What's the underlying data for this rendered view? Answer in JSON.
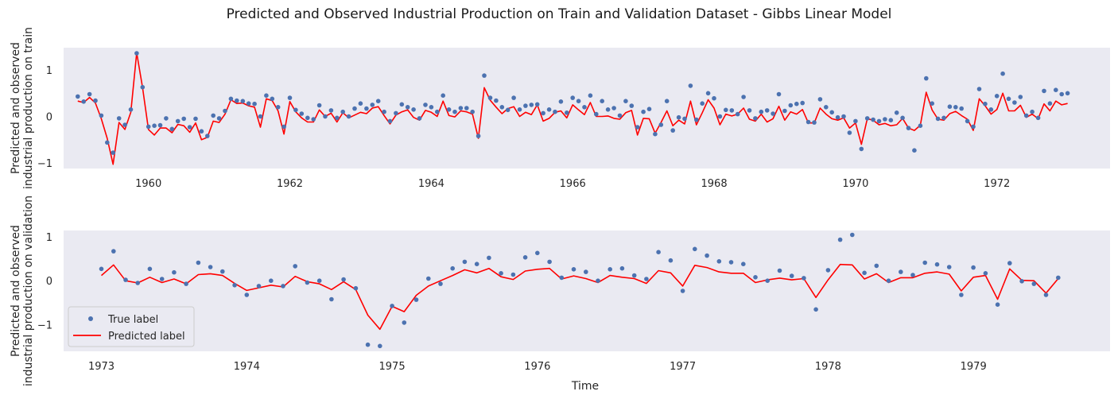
{
  "figure": {
    "title": "Predicted and Observed Industrial Production on Train and Validation Dataset - Gibbs Linear Model"
  },
  "colors": {
    "observed": "#4c72b0",
    "predicted": "#ff0000",
    "background": "#eaeaf2"
  },
  "chart_data": [
    {
      "type": "line",
      "name": "train",
      "ylabel_lines": [
        "Predicted and observed",
        "industrial production on train"
      ],
      "xlabel": "",
      "x_ticks": [
        1960,
        1962,
        1964,
        1966,
        1968,
        1970,
        1972
      ],
      "y_ticks": [
        1,
        0,
        -1
      ],
      "xlim": [
        1958.8,
        1973.6
      ],
      "ylim": [
        -1.12,
        1.48
      ],
      "x_start": 1959.0,
      "x_step": 0.08333,
      "observed": [
        0.43,
        0.32,
        0.48,
        0.34,
        0.02,
        -0.56,
        -0.78,
        -0.04,
        -0.18,
        0.15,
        1.36,
        0.63,
        -0.22,
        -0.2,
        -0.19,
        -0.04,
        -0.27,
        -0.1,
        -0.05,
        -0.23,
        -0.05,
        -0.32,
        -0.42,
        0.02,
        -0.04,
        0.12,
        0.38,
        0.34,
        0.33,
        0.28,
        0.27,
        0.0,
        0.45,
        0.38,
        0.2,
        -0.22,
        0.4,
        0.14,
        0.06,
        -0.03,
        -0.06,
        0.24,
        0.0,
        0.13,
        -0.03,
        0.1,
        0.0,
        0.17,
        0.28,
        0.17,
        0.25,
        0.33,
        0.1,
        -0.1,
        0.07,
        0.26,
        0.2,
        0.15,
        -0.04,
        0.25,
        0.2,
        0.1,
        0.45,
        0.15,
        0.1,
        0.18,
        0.18,
        0.1,
        -0.42,
        0.88,
        0.4,
        0.34,
        0.2,
        0.14,
        0.4,
        0.15,
        0.23,
        0.25,
        0.26,
        0.07,
        0.15,
        0.1,
        0.32,
        0.08,
        0.4,
        0.33,
        0.2,
        0.45,
        0.05,
        0.33,
        0.15,
        0.18,
        0.02,
        0.33,
        0.23,
        -0.23,
        0.1,
        0.16,
        -0.38,
        -0.18,
        0.33,
        -0.3,
        -0.02,
        -0.05,
        0.66,
        -0.07,
        0.28,
        0.5,
        0.39,
        0.0,
        0.14,
        0.13,
        0.05,
        0.42,
        0.13,
        -0.04,
        0.1,
        0.13,
        0.06,
        0.48,
        0.12,
        0.24,
        0.27,
        0.29,
        -0.12,
        -0.13,
        0.37,
        0.2,
        0.09,
        -0.02,
        0.0,
        -0.35,
        -0.1,
        -0.7,
        -0.04,
        -0.07,
        -0.1,
        -0.06,
        -0.08,
        0.08,
        -0.03,
        -0.25,
        -0.73,
        -0.2,
        0.82,
        0.28,
        -0.05,
        -0.03,
        0.21,
        0.2,
        0.17,
        -0.1,
        -0.22,
        0.59,
        0.27,
        0.15,
        0.44,
        0.92,
        0.38,
        0.3,
        0.42,
        0.02,
        0.1,
        -0.03,
        0.55,
        0.28,
        0.57,
        0.48,
        0.5
      ],
      "predicted": [
        0.33,
        0.3,
        0.41,
        0.29,
        -0.05,
        -0.47,
        -1.03,
        -0.13,
        -0.28,
        0.09,
        1.37,
        0.62,
        -0.28,
        -0.4,
        -0.25,
        -0.25,
        -0.35,
        -0.17,
        -0.2,
        -0.34,
        -0.14,
        -0.5,
        -0.45,
        -0.1,
        -0.13,
        0.05,
        0.36,
        0.28,
        0.29,
        0.23,
        0.2,
        -0.23,
        0.38,
        0.34,
        0.12,
        -0.38,
        0.32,
        0.1,
        -0.03,
        -0.12,
        -0.12,
        0.14,
        0.0,
        0.07,
        -0.12,
        0.08,
        -0.03,
        0.03,
        0.09,
        0.06,
        0.18,
        0.21,
        0.02,
        -0.16,
        0.03,
        0.1,
        0.14,
        -0.02,
        -0.08,
        0.13,
        0.09,
        0.0,
        0.33,
        0.02,
        -0.01,
        0.12,
        0.1,
        0.05,
        -0.47,
        0.62,
        0.35,
        0.2,
        0.06,
        0.17,
        0.21,
        0.0,
        0.09,
        0.04,
        0.25,
        -0.1,
        -0.04,
        0.09,
        0.12,
        -0.03,
        0.25,
        0.14,
        0.04,
        0.3,
        0.0,
        0.0,
        0.01,
        -0.04,
        -0.06,
        0.08,
        0.13,
        -0.4,
        -0.04,
        -0.05,
        -0.36,
        -0.13,
        0.12,
        -0.2,
        -0.08,
        -0.16,
        0.33,
        -0.18,
        0.08,
        0.36,
        0.18,
        -0.18,
        0.05,
        0.01,
        0.05,
        0.18,
        -0.06,
        -0.1,
        0.05,
        -0.12,
        -0.05,
        0.22,
        -0.08,
        0.1,
        0.05,
        0.15,
        -0.14,
        -0.14,
        0.18,
        0.05,
        -0.05,
        -0.08,
        -0.03,
        -0.25,
        -0.14,
        -0.6,
        -0.05,
        -0.08,
        -0.18,
        -0.15,
        -0.2,
        -0.18,
        -0.04,
        -0.25,
        -0.3,
        -0.19,
        0.52,
        0.14,
        -0.06,
        -0.08,
        0.06,
        0.11,
        0.02,
        -0.06,
        -0.3,
        0.38,
        0.23,
        0.05,
        0.15,
        0.5,
        0.12,
        0.12,
        0.24,
        -0.02,
        0.05,
        -0.05,
        0.27,
        0.12,
        0.33,
        0.25,
        0.28
      ]
    },
    {
      "type": "line",
      "name": "validation",
      "ylabel_lines": [
        "Predicted and observed",
        "industrial production on validation"
      ],
      "xlabel": "Time",
      "x_ticks": [
        1973,
        1974,
        1975,
        1976,
        1977,
        1978,
        1979
      ],
      "y_ticks": [
        1,
        0,
        -1
      ],
      "xlim": [
        1972.74,
        1979.94
      ],
      "ylim": [
        -1.6,
        1.14
      ],
      "x_start": 1973.0,
      "x_step": 0.08333,
      "observed": [
        0.27,
        0.67,
        0.02,
        -0.05,
        0.27,
        0.04,
        0.19,
        -0.07,
        0.41,
        0.31,
        0.21,
        -0.1,
        -0.32,
        -0.12,
        0.0,
        -0.12,
        0.33,
        -0.04,
        0.0,
        -0.42,
        0.03,
        -0.17,
        -1.45,
        -1.48,
        -0.57,
        -0.95,
        -0.43,
        0.05,
        -0.07,
        0.28,
        0.43,
        0.38,
        0.52,
        0.17,
        0.14,
        0.53,
        0.63,
        0.43,
        0.07,
        0.26,
        0.2,
        0.0,
        0.26,
        0.28,
        0.12,
        0.04,
        0.65,
        0.46,
        -0.23,
        0.72,
        0.57,
        0.44,
        0.42,
        0.38,
        0.08,
        0.0,
        0.23,
        0.11,
        0.06,
        -0.65,
        0.24,
        0.93,
        1.04,
        0.18,
        0.34,
        0.0,
        0.2,
        0.13,
        0.41,
        0.37,
        0.31,
        -0.32,
        0.3,
        0.17,
        -0.54,
        0.4,
        -0.01,
        -0.07,
        -0.32,
        0.07
      ],
      "predicted": [
        0.12,
        0.36,
        0.0,
        -0.05,
        0.08,
        -0.04,
        0.04,
        -0.07,
        0.14,
        0.16,
        0.12,
        -0.06,
        -0.22,
        -0.16,
        -0.1,
        -0.14,
        0.1,
        -0.02,
        -0.07,
        -0.2,
        -0.02,
        -0.2,
        -0.78,
        -1.1,
        -0.58,
        -0.7,
        -0.33,
        -0.12,
        0.0,
        0.12,
        0.25,
        0.18,
        0.28,
        0.09,
        0.03,
        0.22,
        0.26,
        0.28,
        0.04,
        0.11,
        0.05,
        -0.04,
        0.12,
        0.08,
        0.05,
        -0.06,
        0.23,
        0.18,
        -0.12,
        0.35,
        0.3,
        0.2,
        0.17,
        0.17,
        -0.04,
        0.02,
        0.06,
        0.02,
        0.05,
        -0.38,
        0.02,
        0.37,
        0.36,
        0.04,
        0.16,
        -0.04,
        0.07,
        0.07,
        0.17,
        0.2,
        0.15,
        -0.23,
        0.08,
        0.12,
        -0.42,
        0.27,
        0.01,
        0.0,
        -0.28,
        0.05
      ]
    }
  ],
  "legend": {
    "observed_label": "True label",
    "predicted_label": "Predicted label",
    "placement": "lower-left"
  }
}
